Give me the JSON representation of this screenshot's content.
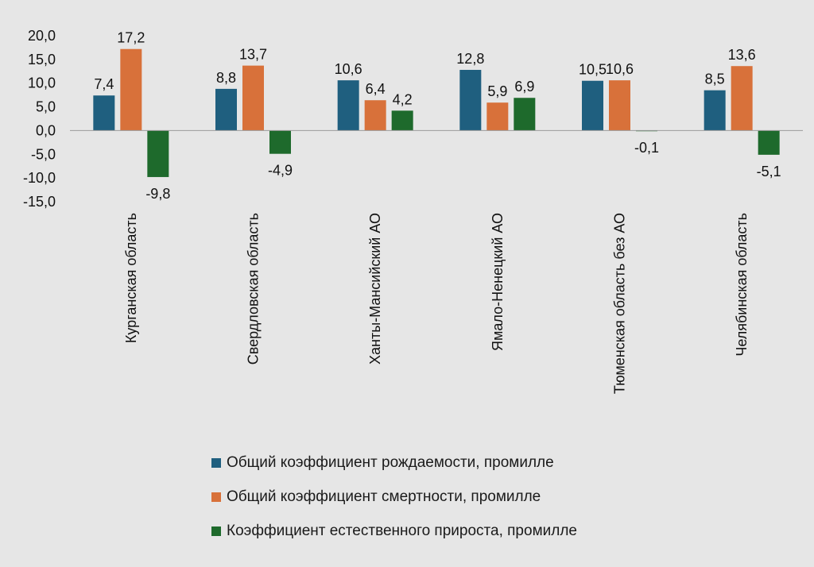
{
  "chart_data": {
    "type": "bar",
    "categories": [
      "Курганская область",
      "Свердловская область",
      "Ханты-Мансийский АО",
      "Ямало-Ненецкий АО",
      "Тюменская область без АО",
      "Челябинская область"
    ],
    "series": [
      {
        "name": "Общий коэффициент рождаемости, промилле",
        "color": "#1f5f7f",
        "values": [
          7.4,
          8.8,
          10.6,
          12.8,
          10.5,
          8.5
        ],
        "labels": [
          "7,4",
          "8,8",
          "10,6",
          "12,8",
          "10,5",
          "8,5"
        ]
      },
      {
        "name": "Общий коэффициент смертности, промилле",
        "color": "#d8713a",
        "values": [
          17.2,
          13.7,
          6.4,
          5.9,
          10.6,
          13.6
        ],
        "labels": [
          "17,2",
          "13,7",
          "6,4",
          "5,9",
          "10,6",
          "13,6"
        ]
      },
      {
        "name": "Коэффициент естественного прироста, промилле",
        "color": "#1e6a2c",
        "values": [
          -9.8,
          -4.9,
          4.2,
          6.9,
          -0.1,
          -5.1
        ],
        "labels": [
          "-9,8",
          "-4,9",
          "4,2",
          "6,9",
          "-0,1",
          "-5,1"
        ]
      }
    ],
    "y_ticks": [
      "20,0",
      "15,0",
      "10,0",
      "5,0",
      "0,0",
      "-5,0",
      "-10,0",
      "-15,0"
    ],
    "ylim": [
      -15,
      20
    ],
    "grid": false,
    "legend_position": "bottom",
    "background": "#e6e6e6"
  }
}
